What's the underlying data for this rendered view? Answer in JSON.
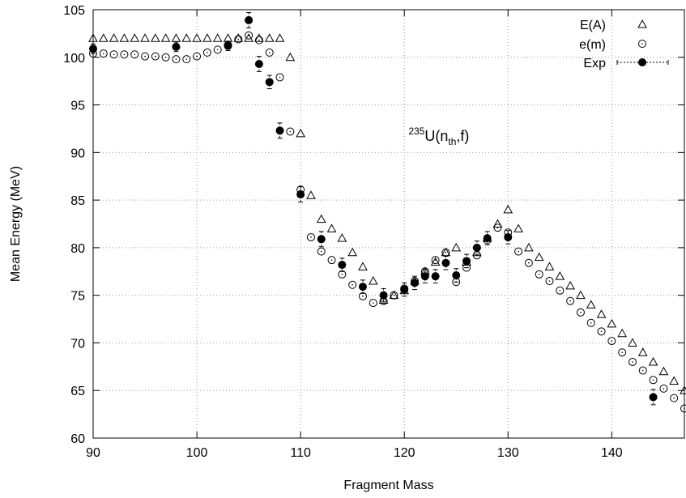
{
  "chart_data": {
    "type": "scatter",
    "xlabel": "Fragment Mass",
    "ylabel": "Mean Energy (MeV)",
    "xlim": [
      90,
      147
    ],
    "ylim": [
      60,
      105
    ],
    "xticks": [
      90,
      100,
      110,
      120,
      130,
      140
    ],
    "yticks": [
      60,
      65,
      70,
      75,
      80,
      85,
      90,
      95,
      100,
      105
    ],
    "grid": true,
    "legend_position": "top-right",
    "annotation": {
      "superscript": "235",
      "base": "U(n",
      "subscript": "th",
      "suffix": ",f)",
      "x": 120.4,
      "y": 91.2
    },
    "series": [
      {
        "name": "E(A)",
        "marker": "triangle",
        "x": [
          90,
          91,
          92,
          93,
          94,
          95,
          96,
          97,
          98,
          99,
          100,
          101,
          102,
          103,
          104,
          105,
          106,
          107,
          108,
          109,
          110,
          111,
          112,
          113,
          114,
          115,
          116,
          117,
          118,
          119,
          120,
          121,
          122,
          123,
          124,
          125,
          126,
          127,
          128,
          129,
          130,
          131,
          132,
          133,
          134,
          135,
          136,
          137,
          138,
          139,
          140,
          141,
          142,
          143,
          144,
          145,
          146,
          147
        ],
        "y": [
          102,
          102,
          102,
          102,
          102,
          102,
          102,
          102,
          102,
          102,
          102,
          102,
          102,
          102,
          102,
          102,
          102,
          102,
          102,
          100,
          92,
          85.5,
          83,
          82,
          81,
          79.5,
          78,
          76.5,
          74.5,
          75,
          75.5,
          76.5,
          77.5,
          78.5,
          79.5,
          80,
          78.5,
          79.5,
          81,
          82.5,
          84,
          82,
          80,
          79,
          78,
          77,
          76,
          75,
          74,
          73,
          72,
          71,
          70,
          69,
          68,
          67,
          66,
          65
        ]
      },
      {
        "name": "e(m)",
        "marker": "circle",
        "x": [
          90,
          91,
          92,
          93,
          94,
          95,
          96,
          97,
          98,
          99,
          100,
          101,
          102,
          103,
          104,
          105,
          106,
          107,
          108,
          109,
          110,
          111,
          112,
          113,
          114,
          115,
          116,
          117,
          118,
          119,
          120,
          121,
          122,
          123,
          124,
          125,
          126,
          127,
          128,
          129,
          130,
          131,
          132,
          133,
          134,
          135,
          136,
          137,
          138,
          139,
          140,
          141,
          142,
          143,
          144,
          145,
          146,
          147
        ],
        "y": [
          100.4,
          100.4,
          100.3,
          100.3,
          100.3,
          100.1,
          100.1,
          100,
          99.8,
          99.8,
          100.1,
          100.5,
          100.8,
          101.3,
          101.9,
          102.3,
          101.8,
          100.5,
          97.9,
          92.2,
          86.1,
          81.1,
          79.6,
          78.7,
          77.2,
          76.1,
          74.9,
          74.2,
          74.4,
          75,
          75.7,
          76.5,
          77.5,
          78.7,
          79.5,
          76.4,
          77.9,
          79.2,
          80.8,
          82.1,
          81.6,
          79.6,
          78.4,
          77.2,
          76.5,
          75.5,
          74.4,
          73.2,
          72.1,
          71.2,
          70.2,
          69,
          68,
          67.1,
          66.1,
          65.2,
          64.2,
          63.1
        ]
      },
      {
        "name": "Exp",
        "marker": "filled-circle",
        "x": [
          90,
          98,
          103,
          105,
          106,
          107,
          108,
          110,
          112,
          114,
          116,
          118,
          120,
          121,
          122,
          123,
          124,
          125,
          126,
          127,
          128,
          130,
          144
        ],
        "y": [
          100.9,
          101.1,
          101.2,
          103.9,
          99.3,
          97.4,
          92.3,
          85.6,
          80.9,
          78.2,
          75.9,
          75.0,
          75.6,
          76.3,
          77.0,
          77.0,
          78.4,
          77.1,
          78.6,
          80.0,
          81.0,
          81.1,
          64.3
        ],
        "err": [
          0.5,
          0.5,
          0.5,
          0.8,
          0.8,
          0.7,
          0.8,
          0.8,
          0.8,
          0.7,
          0.7,
          0.7,
          0.7,
          0.7,
          0.7,
          0.7,
          0.7,
          0.7,
          0.7,
          0.7,
          0.7,
          0.7,
          0.8
        ]
      }
    ]
  }
}
